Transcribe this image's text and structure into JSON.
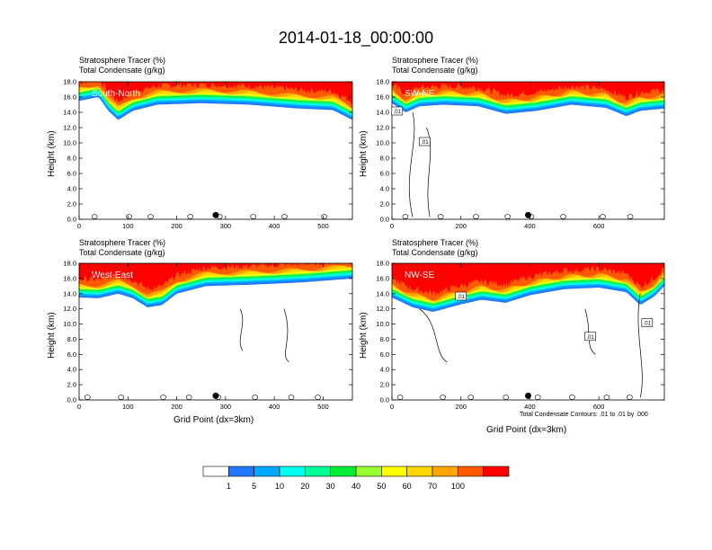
{
  "title": "2014-01-18_00:00:00",
  "colors": [
    "#ffffff",
    "#1f78ff",
    "#00aaff",
    "#00ffee",
    "#00ff99",
    "#00ee33",
    "#99ff33",
    "#ffff00",
    "#ffd700",
    "#ffa500",
    "#ff5a00",
    "#ff0000"
  ],
  "colorbar_labels": [
    "1",
    "5",
    "10",
    "20",
    "30",
    "40",
    "50",
    "60",
    "70",
    "100"
  ],
  "y_axis_label": "Height (km)",
  "x_axis_label": "Grid Point (dx=3km)",
  "contour_note": "Total Condensate Contours: .01 to .01 by .000",
  "header_line1": "Stratosphere Tracer   (%)",
  "header_line2": "Total Condensate   (g/kg)",
  "chart_data": [
    {
      "type": "heatmap",
      "name": "South-North",
      "xlim": [
        0,
        560
      ],
      "ylim": [
        0,
        18
      ],
      "x_ticks": [
        "0",
        "100",
        "200",
        "300",
        "400",
        "500"
      ],
      "y_ticks": [
        "0.0",
        "2.0",
        "4.0",
        "6.0",
        "8.0",
        "10.0",
        "12.0",
        "14.0",
        "16.0",
        "18.0"
      ],
      "tracer_base_km": [
        [
          0,
          15.5
        ],
        [
          40,
          16.0
        ],
        [
          60,
          14.2
        ],
        [
          80,
          13.0
        ],
        [
          110,
          14.2
        ],
        [
          160,
          15.0
        ],
        [
          250,
          15.2
        ],
        [
          350,
          15.0
        ],
        [
          450,
          14.5
        ],
        [
          520,
          14.3
        ],
        [
          560,
          13.0
        ]
      ],
      "contour_labels": [],
      "marker_x": 280
    },
    {
      "type": "heatmap",
      "name": "SW-NE",
      "xlim": [
        0,
        790
      ],
      "ylim": [
        0,
        18
      ],
      "x_ticks": [
        "0",
        "200",
        "400",
        "600"
      ],
      "y_ticks": [
        "0.0",
        "2.0",
        "4.0",
        "6.0",
        "8.0",
        "10.0",
        "12.0",
        "14.0",
        "16.0",
        "18.0"
      ],
      "tracer_base_km": [
        [
          0,
          15.2
        ],
        [
          40,
          14.0
        ],
        [
          80,
          14.8
        ],
        [
          150,
          15.0
        ],
        [
          250,
          14.8
        ],
        [
          330,
          13.8
        ],
        [
          420,
          14.2
        ],
        [
          520,
          15.0
        ],
        [
          620,
          14.6
        ],
        [
          680,
          13.5
        ],
        [
          720,
          14.2
        ],
        [
          790,
          14.5
        ]
      ],
      "contour_labels": [
        ".01",
        ".01"
      ],
      "marker_x": 395
    },
    {
      "type": "heatmap",
      "name": "West-East",
      "xlim": [
        0,
        560
      ],
      "ylim": [
        0,
        18
      ],
      "x_ticks": [
        "0",
        "100",
        "200",
        "300",
        "400",
        "500"
      ],
      "y_ticks": [
        "0.0",
        "2.0",
        "4.0",
        "6.0",
        "8.0",
        "10.0",
        "12.0",
        "14.0",
        "16.0",
        "18.0"
      ],
      "tracer_base_km": [
        [
          0,
          13.5
        ],
        [
          40,
          13.4
        ],
        [
          80,
          14.0
        ],
        [
          110,
          13.4
        ],
        [
          140,
          12.2
        ],
        [
          170,
          12.5
        ],
        [
          200,
          14.0
        ],
        [
          260,
          15.0
        ],
        [
          360,
          15.2
        ],
        [
          460,
          15.5
        ],
        [
          560,
          16.0
        ]
      ],
      "contour_labels": [],
      "marker_x": 280
    },
    {
      "type": "heatmap",
      "name": "NW-SE",
      "xlim": [
        0,
        790
      ],
      "ylim": [
        0,
        18
      ],
      "x_ticks": [
        "0",
        "200",
        "400",
        "600"
      ],
      "y_ticks": [
        "0.0",
        "2.0",
        "4.0",
        "6.0",
        "8.0",
        "10.0",
        "12.0",
        "14.0",
        "16.0",
        "18.0"
      ],
      "tracer_base_km": [
        [
          0,
          13.5
        ],
        [
          60,
          12.2
        ],
        [
          120,
          11.6
        ],
        [
          200,
          12.6
        ],
        [
          260,
          13.2
        ],
        [
          330,
          12.8
        ],
        [
          400,
          13.8
        ],
        [
          500,
          14.6
        ],
        [
          600,
          14.8
        ],
        [
          680,
          14.2
        ],
        [
          720,
          12.5
        ],
        [
          760,
          13.6
        ],
        [
          790,
          15.0
        ]
      ],
      "contour_labels": [
        ".01",
        ".01",
        ".01"
      ],
      "marker_x": 395
    }
  ]
}
